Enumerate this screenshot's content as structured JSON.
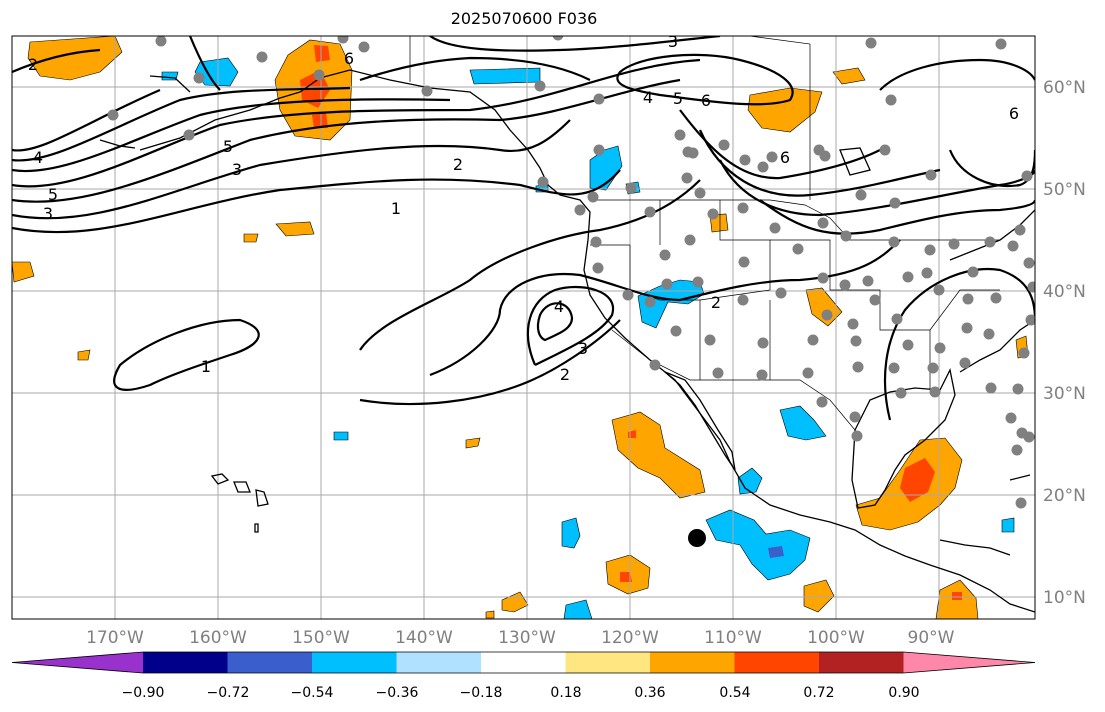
{
  "title": "2025070600 F036",
  "map": {
    "longitude_labels": [
      "170°W",
      "160°W",
      "150°W",
      "140°W",
      "130°W",
      "120°W",
      "110°W",
      "100°W",
      "90°W"
    ],
    "latitude_labels": [
      "60°N",
      "50°N",
      "40°N",
      "30°N",
      "20°N",
      "10°N"
    ],
    "contour_labels": [
      "1",
      "1",
      "2",
      "2",
      "2",
      "3",
      "3",
      "3",
      "4",
      "4",
      "4",
      "5",
      "5",
      "5",
      "6",
      "6",
      "6",
      "3",
      "2",
      "6"
    ]
  },
  "colorbar": {
    "tick_labels": [
      "−0.90",
      "−0.72",
      "−0.54",
      "−0.36",
      "−0.18",
      "0.18",
      "0.36",
      "0.54",
      "0.72",
      "0.90"
    ],
    "colors": [
      "#9932cc",
      "#00008b",
      "#3a5fcd",
      "#00bfff",
      "#b0e2ff",
      "#ffffff",
      "#ffe680",
      "#ffa500",
      "#ff4500",
      "#b22222",
      "#ff88aa"
    ]
  },
  "colors": {
    "station_marker": "#808080",
    "highlight_marker": "#000000",
    "contour_line": "#000000",
    "grid": "#a9a9a9"
  }
}
